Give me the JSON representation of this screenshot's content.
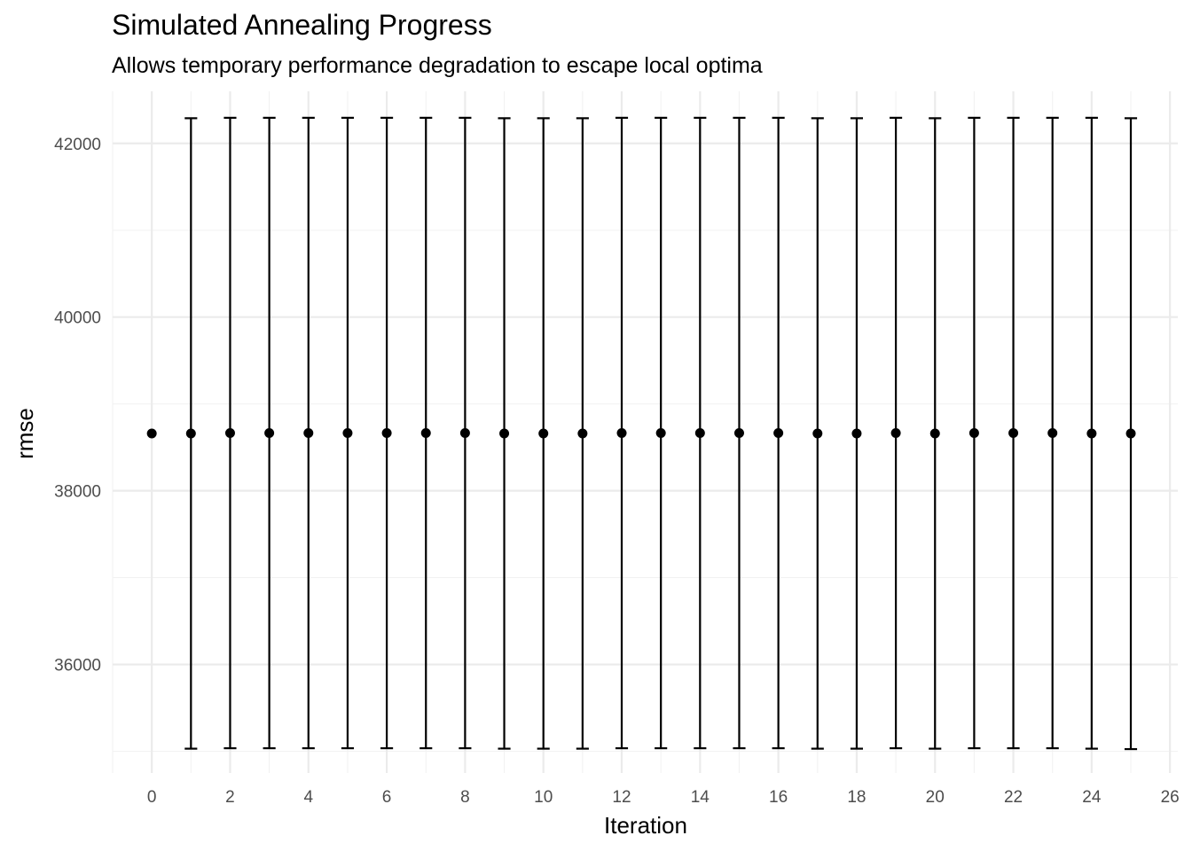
{
  "chart_data": {
    "type": "scatter",
    "title": "Simulated Annealing Progress",
    "subtitle": "Allows temporary performance degradation to escape local optima",
    "xlabel": "Iteration",
    "ylabel": "rmse",
    "xlim": [
      -1,
      26.2
    ],
    "ylim": [
      34750,
      42600
    ],
    "x_ticks": [
      0,
      2,
      4,
      6,
      8,
      10,
      12,
      14,
      16,
      18,
      20,
      22,
      24,
      26
    ],
    "y_ticks": [
      36000,
      38000,
      40000,
      42000
    ],
    "grid": true,
    "legend": "none",
    "points": [
      {
        "x": 0,
        "y": 38660
      },
      {
        "x": 1,
        "y": 38660,
        "ymin": 35030,
        "ymax": 42290
      },
      {
        "x": 2,
        "y": 38665,
        "ymin": 35035,
        "ymax": 42295
      },
      {
        "x": 3,
        "y": 38665,
        "ymin": 35035,
        "ymax": 42295
      },
      {
        "x": 4,
        "y": 38665,
        "ymin": 35035,
        "ymax": 42295
      },
      {
        "x": 5,
        "y": 38665,
        "ymin": 35035,
        "ymax": 42295
      },
      {
        "x": 6,
        "y": 38665,
        "ymin": 35035,
        "ymax": 42295
      },
      {
        "x": 7,
        "y": 38665,
        "ymin": 35035,
        "ymax": 42295
      },
      {
        "x": 8,
        "y": 38665,
        "ymin": 35035,
        "ymax": 42295
      },
      {
        "x": 9,
        "y": 38660,
        "ymin": 35030,
        "ymax": 42290
      },
      {
        "x": 10,
        "y": 38660,
        "ymin": 35030,
        "ymax": 42290
      },
      {
        "x": 11,
        "y": 38660,
        "ymin": 35030,
        "ymax": 42290
      },
      {
        "x": 12,
        "y": 38665,
        "ymin": 35035,
        "ymax": 42295
      },
      {
        "x": 13,
        "y": 38665,
        "ymin": 35035,
        "ymax": 42295
      },
      {
        "x": 14,
        "y": 38665,
        "ymin": 35035,
        "ymax": 42295
      },
      {
        "x": 15,
        "y": 38665,
        "ymin": 35035,
        "ymax": 42295
      },
      {
        "x": 16,
        "y": 38665,
        "ymin": 35035,
        "ymax": 42295
      },
      {
        "x": 17,
        "y": 38660,
        "ymin": 35030,
        "ymax": 42290
      },
      {
        "x": 18,
        "y": 38660,
        "ymin": 35030,
        "ymax": 42290
      },
      {
        "x": 19,
        "y": 38665,
        "ymin": 35035,
        "ymax": 42295
      },
      {
        "x": 20,
        "y": 38660,
        "ymin": 35030,
        "ymax": 42290
      },
      {
        "x": 21,
        "y": 38665,
        "ymin": 35035,
        "ymax": 42295
      },
      {
        "x": 22,
        "y": 38665,
        "ymin": 35035,
        "ymax": 42295
      },
      {
        "x": 23,
        "y": 38665,
        "ymin": 35035,
        "ymax": 42295
      },
      {
        "x": 24,
        "y": 38660,
        "ymin": 35030,
        "ymax": 42295
      },
      {
        "x": 25,
        "y": 38660,
        "ymin": 35025,
        "ymax": 42290
      }
    ]
  }
}
